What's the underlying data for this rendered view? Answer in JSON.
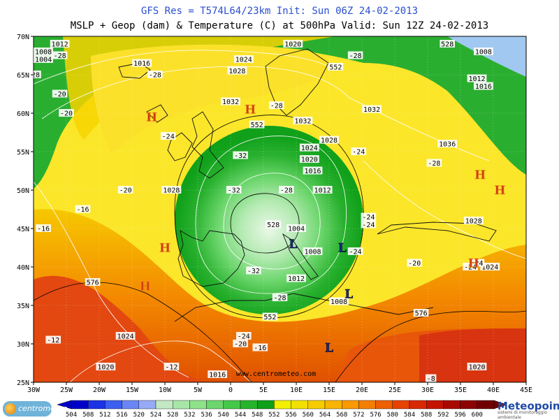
{
  "header": {
    "line1": "GFS Res = T574L64/23km   Init: Sun 06Z 24-02-2013",
    "line2": "MSLP + Geop (dam) & Temperature (C) at 500hPa  Valid: Sun 12Z 24-02-2013"
  },
  "map": {
    "lat_labels": [
      "70N",
      "65N",
      "60N",
      "55N",
      "50N",
      "45N",
      "40N",
      "35N",
      "30N",
      "25N"
    ],
    "lon_labels": [
      "30W",
      "25W",
      "20W",
      "15W",
      "10W",
      "5W",
      "0",
      "5E",
      "10E",
      "15E",
      "20E",
      "25E",
      "30E",
      "35E",
      "40E",
      "45E"
    ],
    "watermark": "www.centrometeo.com",
    "pressure_centers": [
      {
        "type": "H",
        "lat": 59.5,
        "lon": -12
      },
      {
        "type": "H",
        "lat": 60.5,
        "lon": 3
      },
      {
        "type": "H",
        "lat": 52,
        "lon": 38
      },
      {
        "type": "H",
        "lat": 50,
        "lon": 41
      },
      {
        "type": "H",
        "lat": 42.5,
        "lon": -10
      },
      {
        "type": "H",
        "lat": 37.5,
        "lon": -13
      },
      {
        "type": "H",
        "lat": 40.5,
        "lon": 37
      },
      {
        "type": "L",
        "lat": 43,
        "lon": 9.5
      },
      {
        "type": "L",
        "lat": 42.5,
        "lon": 17
      },
      {
        "type": "L",
        "lat": 36.5,
        "lon": 18
      },
      {
        "type": "L",
        "lat": 29.5,
        "lon": 15
      }
    ],
    "isobar_labels": [
      {
        "text": "1012",
        "lat": 69,
        "lon": -26
      },
      {
        "text": "1008",
        "lat": 68,
        "lon": -28.5
      },
      {
        "text": "1004",
        "lat": 67,
        "lon": -28.5
      },
      {
        "text": "1016",
        "lat": 66.5,
        "lon": -13.5
      },
      {
        "text": "1024",
        "lat": 67,
        "lon": 2
      },
      {
        "text": "1020",
        "lat": 69,
        "lon": 9.5
      },
      {
        "text": "1028",
        "lat": 65.5,
        "lon": 1
      },
      {
        "text": "1032",
        "lat": 61.5,
        "lon": 0
      },
      {
        "text": "1032",
        "lat": 59,
        "lon": 11
      },
      {
        "text": "1032",
        "lat": 60.5,
        "lon": 21.5
      },
      {
        "text": "1028",
        "lat": 56.5,
        "lon": 15
      },
      {
        "text": "1024",
        "lat": 55.5,
        "lon": 12
      },
      {
        "text": "1020",
        "lat": 54,
        "lon": 12
      },
      {
        "text": "1016",
        "lat": 52.5,
        "lon": 12.5
      },
      {
        "text": "1012",
        "lat": 50,
        "lon": 14
      },
      {
        "text": "1004",
        "lat": 45,
        "lon": 10
      },
      {
        "text": "1008",
        "lat": 42,
        "lon": 12.5
      },
      {
        "text": "1012",
        "lat": 38.5,
        "lon": 10
      },
      {
        "text": "1008",
        "lat": 35.5,
        "lon": 16.5
      },
      {
        "text": "1028",
        "lat": 50,
        "lon": -9
      },
      {
        "text": "1028",
        "lat": 46,
        "lon": 37
      },
      {
        "text": "1036",
        "lat": 56,
        "lon": 33
      },
      {
        "text": "1008",
        "lat": 68,
        "lon": 38.5
      },
      {
        "text": "1012",
        "lat": 64.5,
        "lon": 37.5
      },
      {
        "text": "1016",
        "lat": 63.5,
        "lon": 38.5
      },
      {
        "text": "1024",
        "lat": 40,
        "lon": 39.5
      },
      {
        "text": "1024",
        "lat": 31,
        "lon": -16
      },
      {
        "text": "1020",
        "lat": 27,
        "lon": -19
      },
      {
        "text": "1020",
        "lat": 27,
        "lon": 37.5
      },
      {
        "text": "1016",
        "lat": 26,
        "lon": -2
      }
    ],
    "geop_labels": [
      {
        "text": "576",
        "lat": 38,
        "lon": -21
      },
      {
        "text": "576",
        "lat": 34,
        "lon": 29
      },
      {
        "text": "552",
        "lat": 66,
        "lon": 16
      },
      {
        "text": "552",
        "lat": 58.5,
        "lon": 4
      },
      {
        "text": "552",
        "lat": 33.5,
        "lon": 6
      },
      {
        "text": "528",
        "lat": 45.5,
        "lon": 6.5
      },
      {
        "text": "528",
        "lat": 69,
        "lon": 33
      }
    ],
    "temp_labels": [
      {
        "text": "-28",
        "lat": 67.5,
        "lon": -26
      },
      {
        "text": "-28",
        "lat": 65,
        "lon": -30
      },
      {
        "text": "-28",
        "lat": 65,
        "lon": -11.5
      },
      {
        "text": "-20",
        "lat": 62.5,
        "lon": -26
      },
      {
        "text": "-20",
        "lat": 60,
        "lon": -25
      },
      {
        "text": "-24",
        "lat": 57,
        "lon": -9.5
      },
      {
        "text": "-32",
        "lat": 54.5,
        "lon": 1.5
      },
      {
        "text": "-32",
        "lat": 50,
        "lon": 0.5
      },
      {
        "text": "-28",
        "lat": 50,
        "lon": 8.5
      },
      {
        "text": "-28",
        "lat": 61,
        "lon": 7
      },
      {
        "text": "-28",
        "lat": 67.5,
        "lon": 19
      },
      {
        "text": "-24",
        "lat": 55,
        "lon": 19.5
      },
      {
        "text": "-28",
        "lat": 53.5,
        "lon": 31
      },
      {
        "text": "-20",
        "lat": 50,
        "lon": -16
      },
      {
        "text": "-16",
        "lat": 47.5,
        "lon": -22.5
      },
      {
        "text": "-16",
        "lat": 45,
        "lon": -28.5
      },
      {
        "text": "-24",
        "lat": 46.5,
        "lon": 21
      },
      {
        "text": "-24",
        "lat": 45.5,
        "lon": 21
      },
      {
        "text": "-24",
        "lat": 42,
        "lon": 19
      },
      {
        "text": "-20",
        "lat": 40.5,
        "lon": 28
      },
      {
        "text": "-24",
        "lat": 40.5,
        "lon": 37.5
      },
      {
        "text": "-24",
        "lat": 40,
        "lon": 36.5
      },
      {
        "text": "-32",
        "lat": 39.5,
        "lon": 3.5
      },
      {
        "text": "-28",
        "lat": 36,
        "lon": 7.5
      },
      {
        "text": "-24",
        "lat": 31,
        "lon": 2
      },
      {
        "text": "-20",
        "lat": 30,
        "lon": 1.5
      },
      {
        "text": "-16",
        "lat": 29.5,
        "lon": 4.5
      },
      {
        "text": "-12",
        "lat": 30.5,
        "lon": -27
      },
      {
        "text": "-12",
        "lat": 27,
        "lon": -9
      },
      {
        "text": "-8",
        "lat": 25.5,
        "lon": 30.5
      }
    ]
  },
  "colorbar": {
    "values": [
      "504",
      "508",
      "512",
      "516",
      "520",
      "524",
      "528",
      "532",
      "536",
      "540",
      "544",
      "548",
      "552",
      "556",
      "560",
      "564",
      "568",
      "572",
      "576",
      "580",
      "584",
      "588",
      "592",
      "596",
      "600"
    ],
    "colors": [
      "#0000c8",
      "#1c32e6",
      "#3c5ff0",
      "#6a86f4",
      "#96aaf6",
      "#c4e8c4",
      "#a8e6a8",
      "#8ee28a",
      "#6cd66c",
      "#46c84a",
      "#26b42c",
      "#0ea018",
      "#f0f000",
      "#f2e100",
      "#f6cc00",
      "#f8b400",
      "#f89a00",
      "#f47e00",
      "#ee6000",
      "#e64200",
      "#d82800",
      "#c41400",
      "#a80a00",
      "#8c0400",
      "#700000"
    ]
  },
  "footer": {
    "left_logo": "centrometeo",
    "right_brand": "Meteopoint",
    "right_sub": "sistemi di monitoraggio ambientale"
  }
}
